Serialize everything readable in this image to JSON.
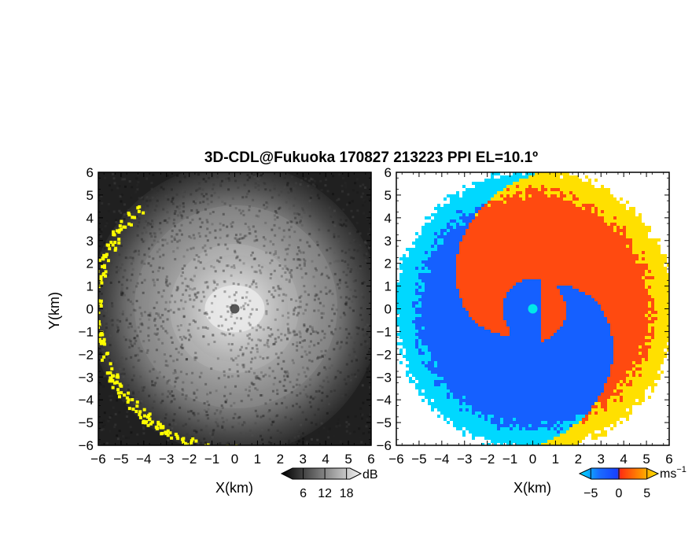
{
  "chart_data": {
    "type": "heatmap",
    "title": "3D-CDL@Fukuoka 170827 213223 PPI EL=10.1º",
    "panels": [
      {
        "id": "snr",
        "xlabel": "X(km)",
        "ylabel": "Y(km)",
        "xlim": [
          -6,
          6
        ],
        "ylim": [
          -6,
          6
        ],
        "xticks": [
          "−6",
          "−5",
          "−4",
          "−3",
          "−2",
          "−1",
          "0",
          "1",
          "2",
          "3",
          "4",
          "5",
          "6"
        ],
        "yticks": [
          "−6",
          "−5",
          "−4",
          "−3",
          "−2",
          "−1",
          "0",
          "1",
          "2",
          "3",
          "4",
          "5",
          "6"
        ],
        "colorbar": {
          "unit": "dB",
          "ticks": [
            "6",
            "12",
            "18"
          ],
          "values": [
            6,
            12,
            18
          ],
          "range": [
            0,
            22
          ]
        },
        "colors": {
          "low": "#1a1a1a",
          "high": "#e0e0e0",
          "flag": "#ffff00",
          "center": "#555555"
        }
      },
      {
        "id": "velocity",
        "xlabel": "X(km)",
        "xlim": [
          -6,
          6
        ],
        "ylim": [
          -6,
          6
        ],
        "xticks": [
          "−6",
          "−5",
          "−4",
          "−3",
          "−2",
          "−1",
          "0",
          "1",
          "2",
          "3",
          "4",
          "5",
          "6"
        ],
        "yticks": [
          "−6",
          "−5",
          "−4",
          "−3",
          "−2",
          "−1",
          "0",
          "1",
          "2",
          "3",
          "4",
          "5",
          "6"
        ],
        "colorbar": {
          "unit": "ms",
          "unit_sup": "−1",
          "ticks": [
            "−5",
            "0",
            "5"
          ],
          "values": [
            -5,
            0,
            5
          ],
          "range": [
            -7,
            7
          ]
        },
        "colors": {
          "neg_far": "#00d8ff",
          "neg": "#1560ff",
          "pos": "#ff4a10",
          "pos_far": "#ffe000",
          "center": "#00e8e8"
        }
      }
    ]
  }
}
